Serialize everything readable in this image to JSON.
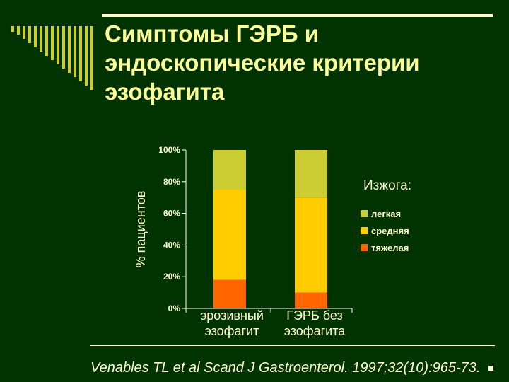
{
  "slide": {
    "title": "Симптомы ГЭРБ и эндоскопические критерии эзофагита",
    "citation": "Venables TL et al Scand J Gastroenterol. 1997;32(10):965-73."
  },
  "chart_data": {
    "type": "bar",
    "stacked": true,
    "percent_axis": true,
    "ylabel": "% пациентов",
    "ylim": [
      0,
      100
    ],
    "yticks": [
      "0%",
      "20%",
      "40%",
      "60%",
      "80%",
      "100%"
    ],
    "categories": [
      "эрозивный\nэзофагит",
      "ГЭРБ без\nэзофагита"
    ],
    "legend_title": "Изжога:",
    "legend_position": "right",
    "series": [
      {
        "name": "тяжелая",
        "color": "#ff6600",
        "values": [
          18,
          10
        ]
      },
      {
        "name": "средняя",
        "color": "#ffcc00",
        "values": [
          57,
          60
        ]
      },
      {
        "name": "легкая",
        "color": "#cccc33",
        "values": [
          25,
          30
        ]
      }
    ]
  }
}
